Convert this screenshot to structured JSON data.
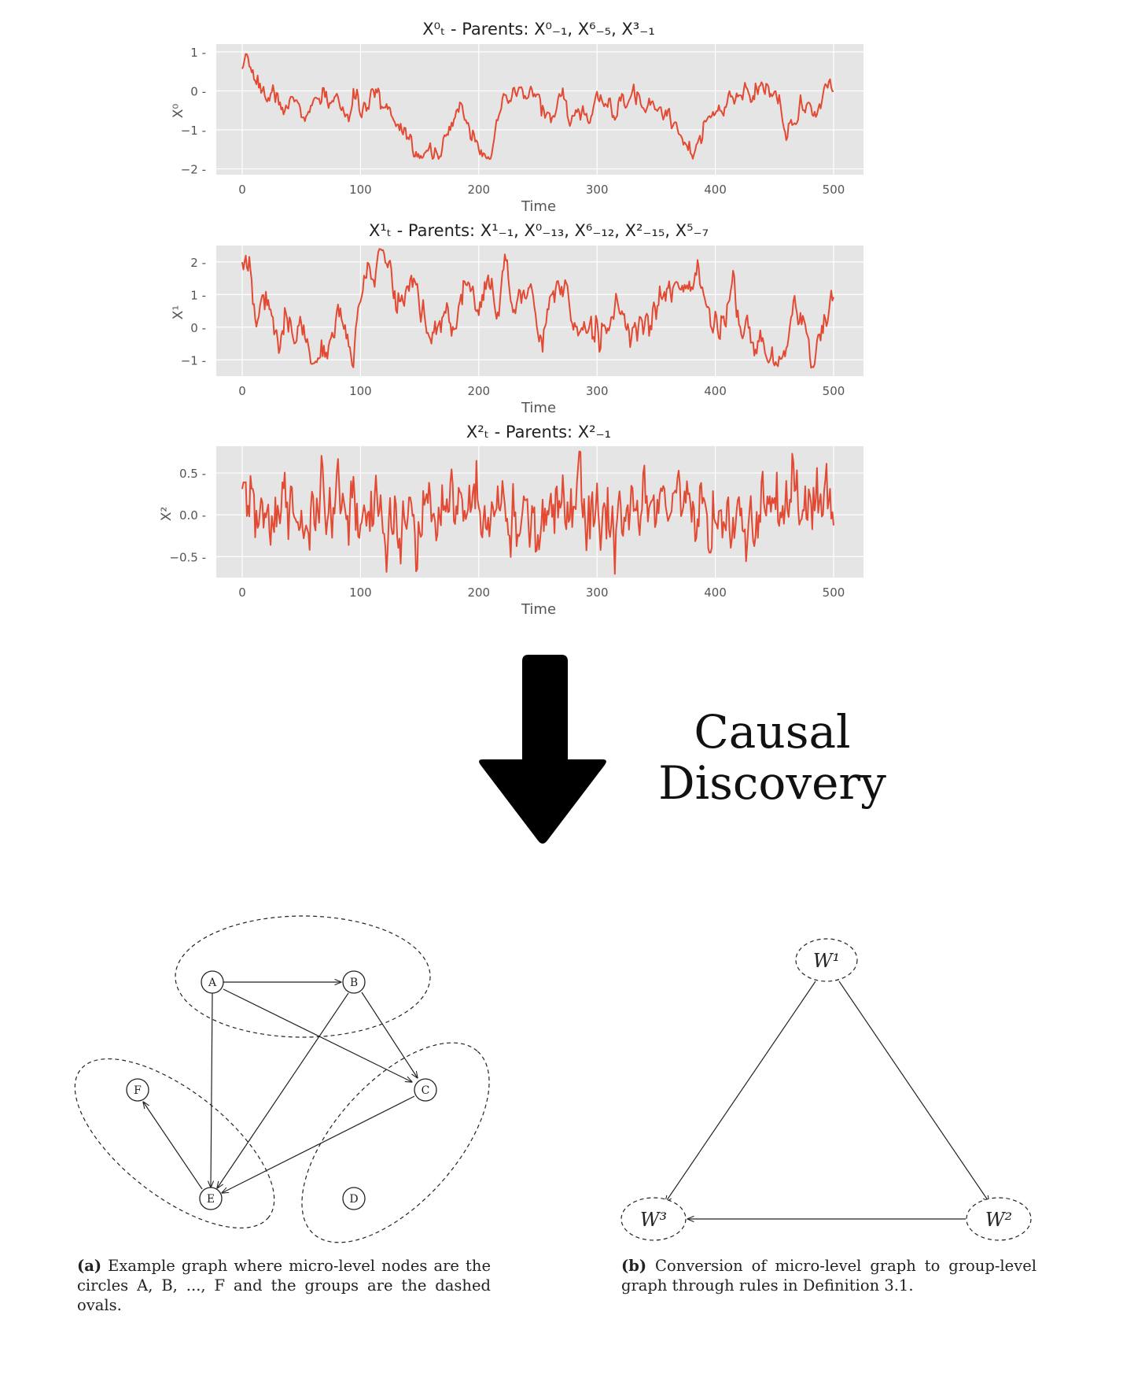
{
  "time_series": {
    "xlabel": "Time",
    "x_ticks": [
      "0",
      "100",
      "200",
      "300",
      "400",
      "500"
    ],
    "panels": [
      {
        "title": "X⁰ₜ - Parents: X⁰₋₁, X⁶₋₅, X³₋₁",
        "ylabel": "X⁰",
        "y_ticks": [
          "1",
          "0",
          "−1",
          "−2"
        ],
        "color": "#e24a33"
      },
      {
        "title": "X¹ₜ - Parents: X¹₋₁, X⁰₋₁₃, X⁶₋₁₂, X²₋₁₅, X⁵₋₇",
        "ylabel": "X¹",
        "y_ticks": [
          "2",
          "1",
          "0",
          "−1"
        ],
        "color": "#e24a33"
      },
      {
        "title": "X²ₜ - Parents: X²₋₁",
        "ylabel": "X²",
        "y_ticks": [
          "0.5",
          "0.0",
          "−0.5"
        ],
        "color": "#e24a33"
      }
    ]
  },
  "arrow_label": {
    "line1": "Causal",
    "line2": "Discovery"
  },
  "graph_a": {
    "nodes": [
      "A",
      "B",
      "C",
      "D",
      "E",
      "F"
    ],
    "caption_label": "(a)",
    "caption_text": " Example graph where micro-level nodes are the circles A, B, ..., F and the groups are the dashed ovals."
  },
  "graph_b": {
    "nodes": [
      "W¹",
      "W²",
      "W³"
    ],
    "caption_label": "(b)",
    "caption_text": " Conversion of micro-level graph to group-level graph through rules in Definition 3.1."
  }
}
